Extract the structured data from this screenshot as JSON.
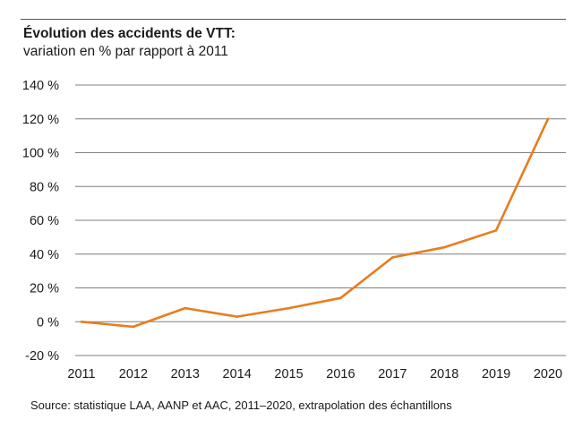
{
  "header": {
    "title": "Évolution des accidents de VTT:",
    "subtitle": "variation en % par rapport à 2011"
  },
  "footer": {
    "source": "Source: statistique LAA, AANP et AAC, 2011–2020, extrapolation des échantillons"
  },
  "colors": {
    "line": "#e87d1e",
    "grid": "#7f7f7f"
  },
  "chart_data": {
    "type": "line",
    "title": "Évolution des accidents de VTT:",
    "subtitle": "variation en % par rapport à 2011",
    "xlabel": "",
    "ylabel": "",
    "x": [
      "2011",
      "2012",
      "2013",
      "2014",
      "2015",
      "2016",
      "2017",
      "2018",
      "2019",
      "2020"
    ],
    "series": [
      {
        "values": [
          0,
          -3,
          8,
          3,
          8,
          14,
          38,
          44,
          54,
          120
        ]
      }
    ],
    "ylim": [
      -20,
      140
    ],
    "yticks": [
      -20,
      0,
      20,
      40,
      60,
      80,
      100,
      120,
      140
    ],
    "ytick_labels": [
      "-20 %",
      "0 %",
      "20 %",
      "40 %",
      "60 %",
      "80 %",
      "100 %",
      "120 %",
      "140 %"
    ],
    "grid": "horizontal",
    "legend": "none"
  }
}
